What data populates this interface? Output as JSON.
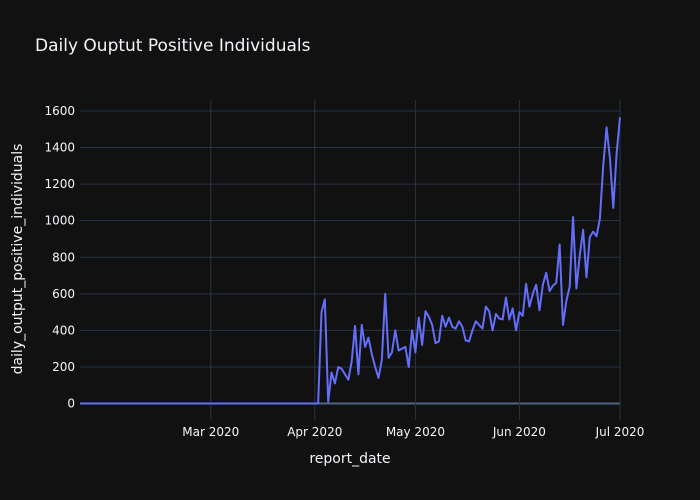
{
  "chart_data": {
    "type": "line",
    "title": "Daily Ouptut Positive Individuals",
    "xlabel": "report_date",
    "ylabel": "daily_output_positive_individuals",
    "xlim": [
      "2020-01-22",
      "2020-07-01"
    ],
    "ylim": [
      -90,
      1660
    ],
    "x_ticks": [
      {
        "date": "2020-03-01",
        "label": "Mar 2020"
      },
      {
        "date": "2020-04-01",
        "label": "Apr 2020"
      },
      {
        "date": "2020-05-01",
        "label": "May 2020"
      },
      {
        "date": "2020-06-01",
        "label": "Jun 2020"
      },
      {
        "date": "2020-07-01",
        "label": "Jul 2020"
      }
    ],
    "y_ticks": [
      0,
      200,
      400,
      600,
      800,
      1000,
      1200,
      1400,
      1600
    ],
    "grid": true,
    "colors": {
      "background": "#111111",
      "grid": "#283442",
      "zeroline": "#506784",
      "line": "#636efa",
      "text": "#f2f5fa"
    },
    "series": [
      {
        "x": [
          "2020-01-22",
          "2020-04-02",
          "2020-04-03",
          "2020-04-04",
          "2020-04-05",
          "2020-04-06",
          "2020-04-07",
          "2020-04-08",
          "2020-04-09",
          "2020-04-10",
          "2020-04-11",
          "2020-04-12",
          "2020-04-13",
          "2020-04-14",
          "2020-04-15",
          "2020-04-16",
          "2020-04-17",
          "2020-04-18",
          "2020-04-19",
          "2020-04-20",
          "2020-04-21",
          "2020-04-22",
          "2020-04-23",
          "2020-04-24",
          "2020-04-25",
          "2020-04-26",
          "2020-04-27",
          "2020-04-28",
          "2020-04-29",
          "2020-04-30",
          "2020-05-01",
          "2020-05-02",
          "2020-05-03",
          "2020-05-04",
          "2020-05-05",
          "2020-05-06",
          "2020-05-07",
          "2020-05-08",
          "2020-05-09",
          "2020-05-10",
          "2020-05-11",
          "2020-05-12",
          "2020-05-13",
          "2020-05-14",
          "2020-05-15",
          "2020-05-16",
          "2020-05-17",
          "2020-05-18",
          "2020-05-19",
          "2020-05-20",
          "2020-05-21",
          "2020-05-22",
          "2020-05-23",
          "2020-05-24",
          "2020-05-25",
          "2020-05-26",
          "2020-05-27",
          "2020-05-28",
          "2020-05-29",
          "2020-05-30",
          "2020-05-31",
          "2020-06-01",
          "2020-06-02",
          "2020-06-03",
          "2020-06-04",
          "2020-06-05",
          "2020-06-06",
          "2020-06-07",
          "2020-06-08",
          "2020-06-09",
          "2020-06-10",
          "2020-06-11",
          "2020-06-12",
          "2020-06-13",
          "2020-06-14",
          "2020-06-15",
          "2020-06-16",
          "2020-06-17",
          "2020-06-18",
          "2020-06-19",
          "2020-06-20",
          "2020-06-21",
          "2020-06-22",
          "2020-06-23",
          "2020-06-24",
          "2020-06-25",
          "2020-06-26",
          "2020-06-27",
          "2020-06-28",
          "2020-06-29",
          "2020-06-30",
          "2020-07-01"
        ],
        "y": [
          0,
          0,
          500,
          570,
          10,
          170,
          110,
          200,
          190,
          160,
          130,
          230,
          425,
          160,
          430,
          310,
          360,
          270,
          200,
          140,
          240,
          600,
          250,
          280,
          400,
          290,
          300,
          310,
          200,
          400,
          280,
          470,
          320,
          505,
          475,
          430,
          330,
          340,
          480,
          420,
          470,
          420,
          410,
          450,
          420,
          345,
          340,
          400,
          450,
          430,
          410,
          530,
          505,
          400,
          490,
          465,
          460,
          580,
          460,
          520,
          400,
          500,
          480,
          655,
          530,
          600,
          650,
          510,
          650,
          715,
          615,
          645,
          660,
          870,
          430,
          560,
          640,
          1020,
          630,
          810,
          950,
          690,
          910,
          940,
          915,
          1010,
          1300,
          1510,
          1340,
          1070,
          1370,
          1565
        ]
      }
    ]
  }
}
